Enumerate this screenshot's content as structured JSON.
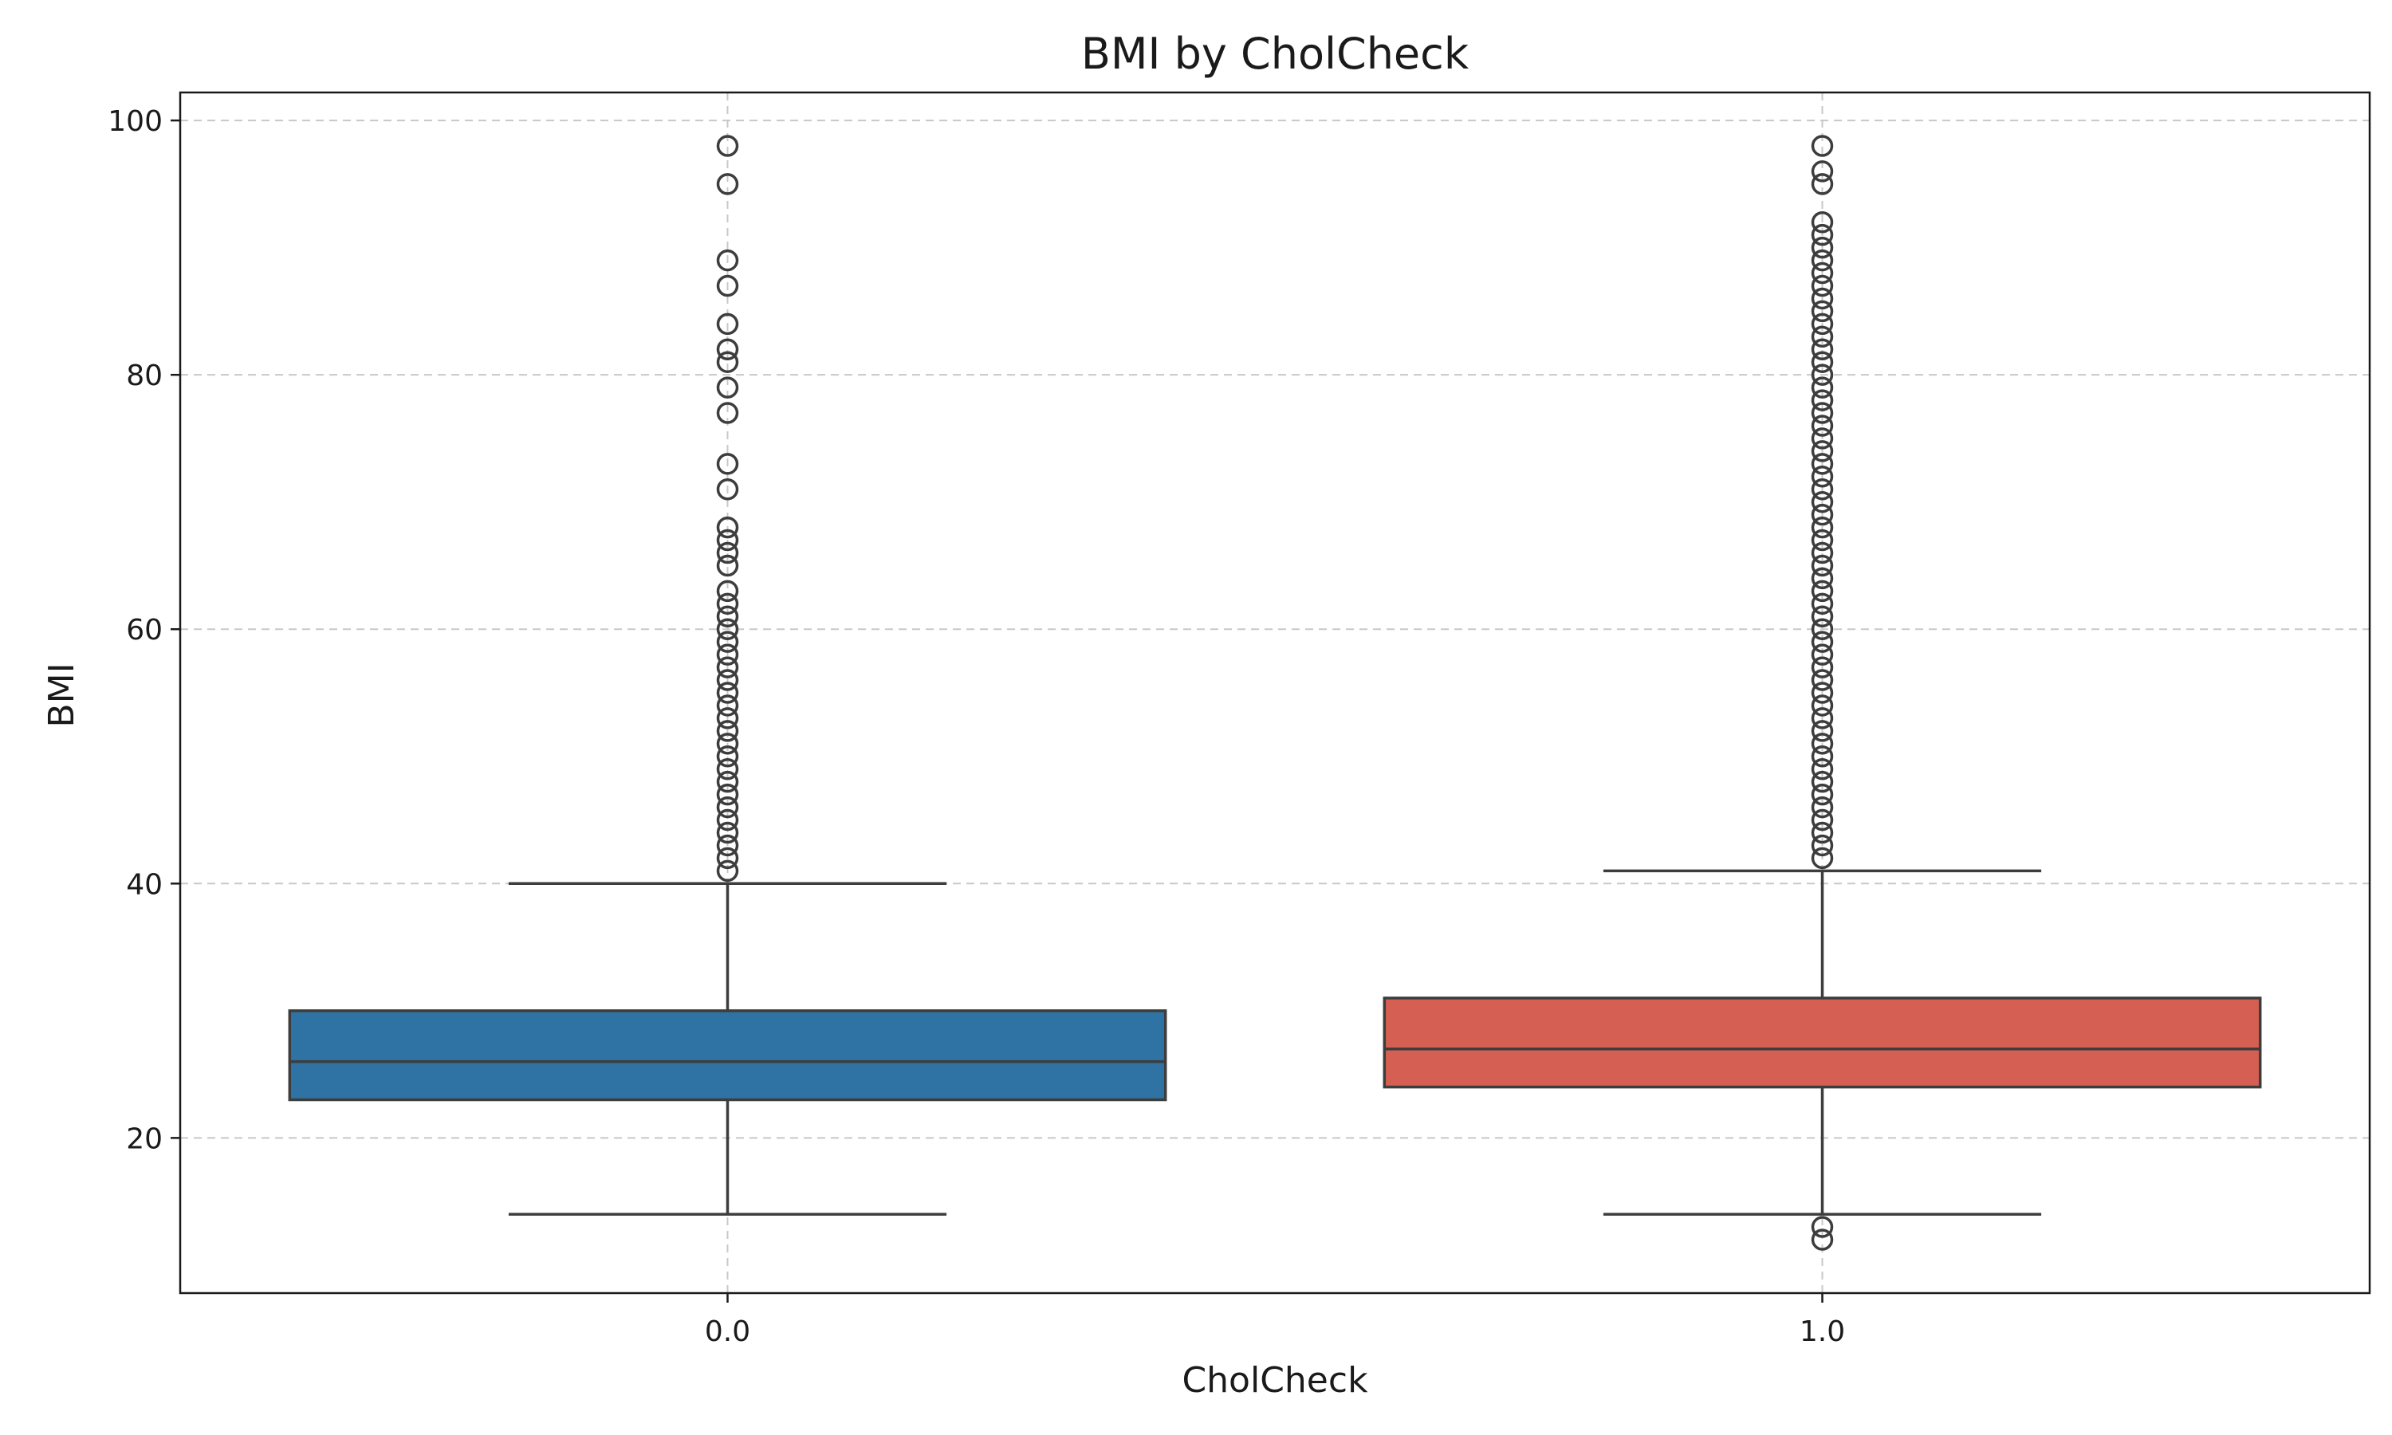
{
  "chart_data": {
    "type": "box",
    "title": "BMI by CholCheck",
    "xlabel": "CholCheck",
    "ylabel": "BMI",
    "ylim": [
      7.8,
      102.2
    ],
    "y_ticks": [
      20,
      40,
      60,
      80,
      100
    ],
    "y_tick_labels": [
      "20",
      "40",
      "60",
      "80",
      "100"
    ],
    "grid": true,
    "categories": [
      "0.0",
      "1.0"
    ],
    "boxes": [
      {
        "category": "0.0",
        "color": "#2e73a3",
        "q1": 23,
        "median": 26,
        "q3": 30,
        "whisker_low": 14,
        "whisker_high": 40,
        "outliers": [
          41,
          42,
          43,
          44,
          45,
          46,
          47,
          48,
          49,
          50,
          51,
          52,
          53,
          54,
          55,
          56,
          57,
          58,
          59,
          60,
          61,
          62,
          63,
          65,
          66,
          67,
          68,
          71,
          73,
          77,
          79,
          81,
          82,
          84,
          87,
          89,
          95,
          98
        ]
      },
      {
        "category": "1.0",
        "color": "#d45f52",
        "q1": 24,
        "median": 27,
        "q3": 31,
        "whisker_low": 14,
        "whisker_high": 41,
        "outliers": [
          12,
          13,
          42,
          43,
          44,
          45,
          46,
          47,
          48,
          49,
          50,
          51,
          52,
          53,
          54,
          55,
          56,
          57,
          58,
          59,
          60,
          61,
          62,
          63,
          64,
          65,
          66,
          67,
          68,
          69,
          70,
          71,
          72,
          73,
          74,
          75,
          76,
          77,
          78,
          79,
          80,
          81,
          82,
          83,
          84,
          85,
          86,
          87,
          88,
          89,
          90,
          91,
          92,
          95,
          96,
          98
        ]
      }
    ]
  }
}
